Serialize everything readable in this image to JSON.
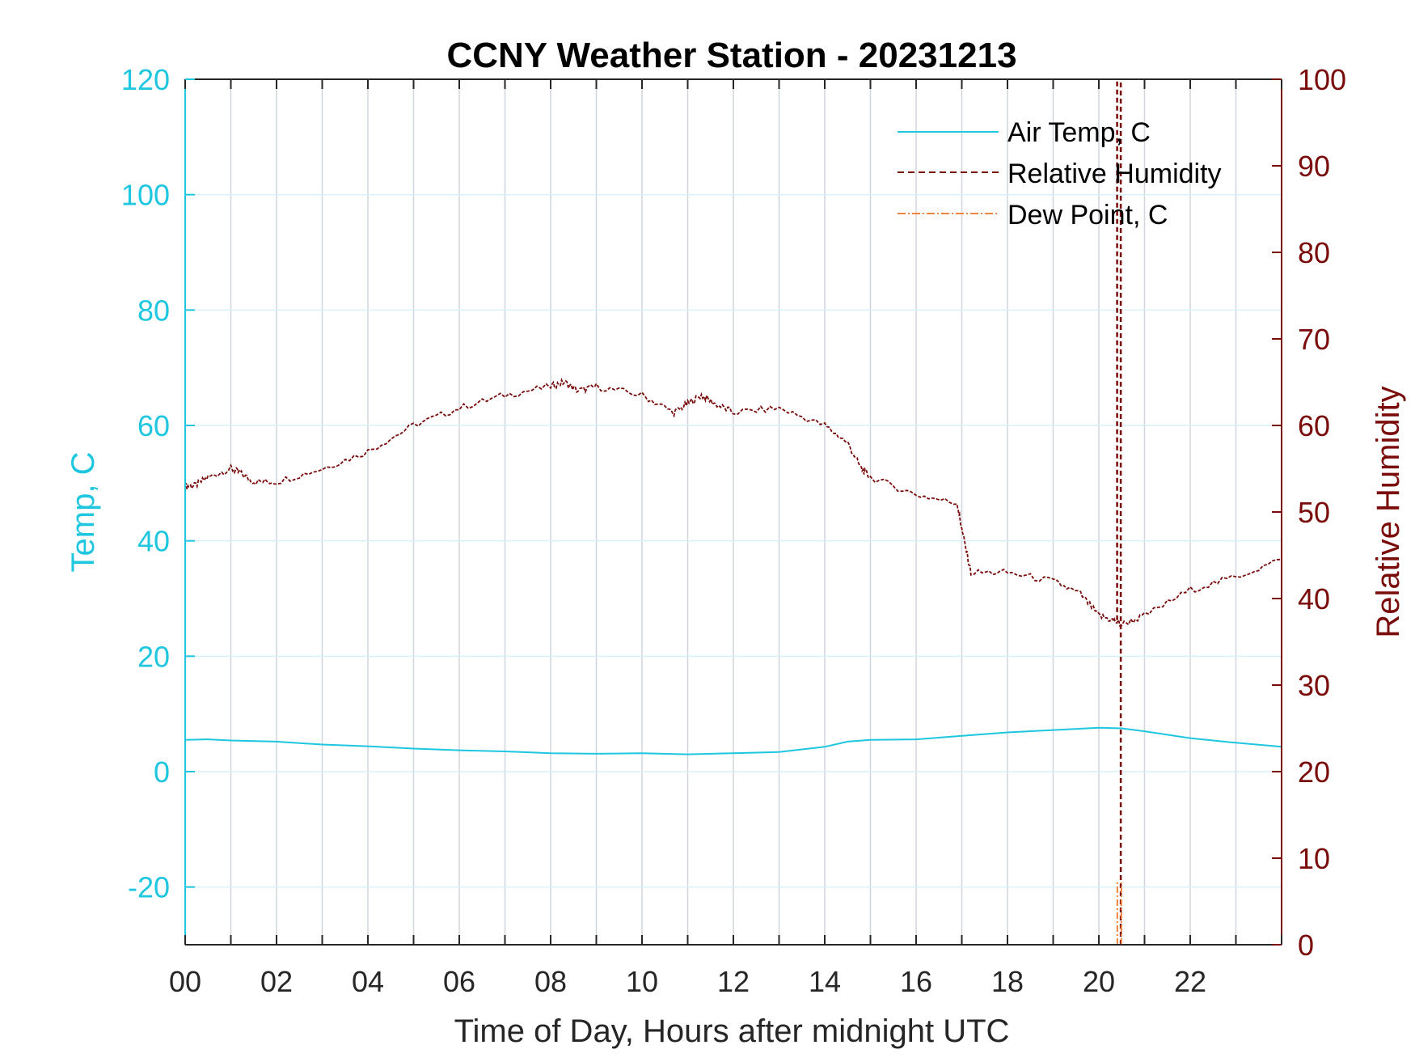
{
  "chart_data": {
    "type": "line",
    "title": "CCNY Weather Station - 20231213",
    "xlabel": "Time of Day, Hours after midnight UTC",
    "ylabel_left": "Temp, C",
    "ylabel_right": "Relative Humidity",
    "xlim": [
      0,
      24
    ],
    "ylim_left": [
      -30,
      120
    ],
    "ylim_right": [
      0,
      100
    ],
    "x_ticks": [
      "00",
      "02",
      "04",
      "06",
      "08",
      "10",
      "12",
      "14",
      "16",
      "18",
      "20",
      "22"
    ],
    "x_tick_values": [
      0,
      2,
      4,
      6,
      8,
      10,
      12,
      14,
      16,
      18,
      20,
      22
    ],
    "y_ticks_left": [
      "-20",
      "0",
      "20",
      "40",
      "60",
      "80",
      "100",
      "120"
    ],
    "y_tick_values_left": [
      -20,
      0,
      20,
      40,
      60,
      80,
      100,
      120
    ],
    "y_ticks_right": [
      "0",
      "10",
      "20",
      "30",
      "40",
      "50",
      "60",
      "70",
      "80",
      "90",
      "100"
    ],
    "y_tick_values_right": [
      0,
      10,
      20,
      30,
      40,
      50,
      60,
      70,
      80,
      90,
      100
    ],
    "grid": true,
    "legend_position": "top-right",
    "colors": {
      "temp": "#1ec6e0",
      "humidity": "#7a0b0b",
      "dewpoint": "#f0843c",
      "grid_vertical": "#d0d6dc",
      "grid_horizontal": "#d6f1f7",
      "axis_x": "#262626"
    },
    "series": [
      {
        "name": "Air Temp, C",
        "axis": "left",
        "style": "solid",
        "x": [
          0,
          0.5,
          1,
          2,
          3,
          4,
          5,
          6,
          7,
          8,
          9,
          10,
          11,
          12,
          13,
          14,
          14.5,
          15,
          16,
          17,
          18,
          19,
          20,
          20.5,
          21,
          22,
          23,
          24
        ],
        "y": [
          5.5,
          5.6,
          5.4,
          5.2,
          4.7,
          4.4,
          4.0,
          3.7,
          3.5,
          3.2,
          3.1,
          3.2,
          3.0,
          3.2,
          3.4,
          4.3,
          5.2,
          5.5,
          5.6,
          6.2,
          6.8,
          7.2,
          7.6,
          7.5,
          7.0,
          5.8,
          5.0,
          4.3
        ]
      },
      {
        "name": "Relative Humidity",
        "axis": "right",
        "style": "dashed",
        "x": [
          0,
          0.2,
          0.5,
          1,
          1.2,
          1.5,
          2,
          3,
          4,
          5,
          6,
          7,
          8,
          8.3,
          8.6,
          9,
          10,
          10.7,
          11,
          11.3,
          11.6,
          12,
          13,
          14,
          14.5,
          14.8,
          15,
          16,
          16.9,
          17,
          17.2,
          18,
          19,
          19.6,
          20,
          20.3,
          20.5,
          21,
          22,
          23,
          24
        ],
        "y": [
          53,
          53,
          54,
          55,
          54.5,
          53.5,
          53.5,
          55,
          57,
          60,
          62,
          63.5,
          64.5,
          65,
          64,
          64.5,
          63.5,
          61.5,
          62.5,
          63.5,
          62.5,
          61.5,
          62,
          60,
          58,
          55,
          54,
          52,
          51,
          48,
          43,
          43,
          42,
          40.5,
          38,
          37.5,
          37,
          38,
          41,
          42.5,
          44.5
        ]
      },
      {
        "name": "Dew Point, C",
        "axis": "left",
        "style": "dashdot",
        "x": [],
        "y": []
      }
    ],
    "spikes": [
      {
        "series": "Relative Humidity",
        "x": 20.4,
        "from": 37.5,
        "to": 100
      },
      {
        "series": "Relative Humidity",
        "x": 20.48,
        "from": 0,
        "to": 100
      },
      {
        "series": "Dew Point, C",
        "x": 20.44,
        "from": -30,
        "to": -19
      }
    ]
  }
}
